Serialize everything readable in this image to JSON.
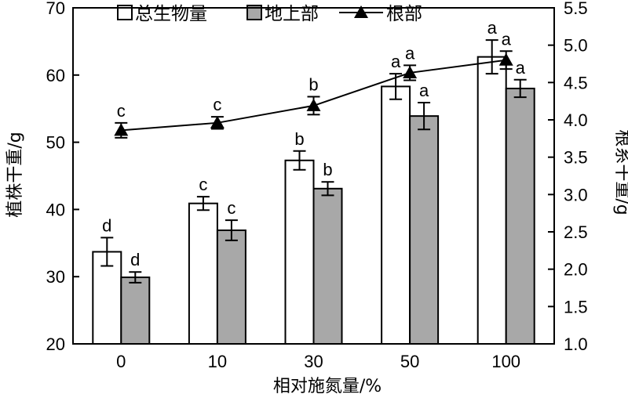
{
  "chart_data": {
    "type": "bar",
    "title": "",
    "xlabel": "相对施氮量/%",
    "ylabel": "植株干重/g",
    "y2label": "根系干重/g",
    "categories": [
      "0",
      "10",
      "30",
      "50",
      "100"
    ],
    "ylim": [
      20,
      70
    ],
    "y2lim": [
      1.0,
      5.5
    ],
    "yticks": [
      "20",
      "30",
      "40",
      "50",
      "60",
      "70"
    ],
    "y2ticks": [
      "1.0",
      "1.5",
      "2.0",
      "2.5",
      "3.0",
      "3.5",
      "4.0",
      "4.5",
      "5.0",
      "5.5"
    ],
    "legend_position": "top",
    "grid": false,
    "series": [
      {
        "name": "总生物量",
        "type": "bar",
        "axis": "left",
        "color": "#ffffff",
        "values": [
          33.7,
          40.9,
          47.3,
          58.3,
          62.7
        ],
        "errors": [
          2.1,
          1.0,
          1.4,
          1.9,
          2.5
        ],
        "labels": [
          "d",
          "c",
          "b",
          "a",
          "a"
        ]
      },
      {
        "name": "地上部",
        "type": "bar",
        "axis": "left",
        "color": "#a8a8a8",
        "values": [
          29.9,
          36.9,
          43.1,
          53.9,
          58.0
        ],
        "errors": [
          0.8,
          1.5,
          1.0,
          2.0,
          1.3
        ],
        "labels": [
          "d",
          "c",
          "b",
          "a",
          "a"
        ]
      },
      {
        "name": "根部",
        "type": "line",
        "axis": "right",
        "color": "#000000",
        "marker": "triangle",
        "values": [
          3.86,
          3.96,
          4.19,
          4.63,
          4.8
        ],
        "errors": [
          0.1,
          0.08,
          0.12,
          0.1,
          0.12
        ],
        "labels": [
          "c",
          "c",
          "b",
          "a",
          "a"
        ]
      }
    ]
  }
}
